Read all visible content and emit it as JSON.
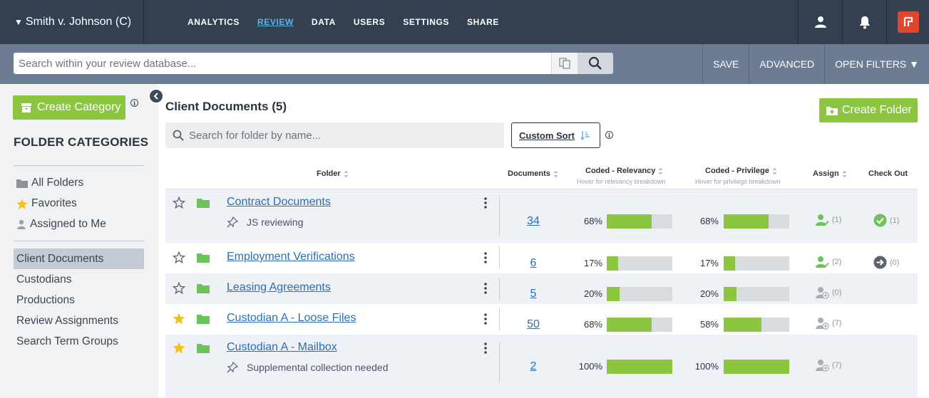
{
  "app": {
    "case_name": "Smith v. Johnson (C)",
    "nav": [
      {
        "label": "ANALYTICS",
        "active": false
      },
      {
        "label": "REVIEW",
        "active": true
      },
      {
        "label": "DATA",
        "active": false
      },
      {
        "label": "USERS",
        "active": false
      },
      {
        "label": "SETTINGS",
        "active": false
      },
      {
        "label": "SHARE",
        "active": false
      }
    ],
    "icons": [
      "user-icon",
      "bell-icon",
      "app-logo-icon"
    ],
    "colors": {
      "topbar": "#34404f",
      "searchbar": "#6c7c93",
      "accent_green": "#8cc53f",
      "link": "#2a6eb5",
      "active_nav": "#5db4e6",
      "logo": "#e0452e"
    }
  },
  "search": {
    "placeholder": "Search within your review database...",
    "actions": [
      "SAVE",
      "ADVANCED",
      "OPEN FILTERS ▼"
    ]
  },
  "sidebar": {
    "create_category": "Create Category",
    "title": "FOLDER CATEGORIES",
    "quick": [
      {
        "label": "All Folders",
        "icon": "folder-icon"
      },
      {
        "label": "Favorites",
        "icon": "star-icon"
      },
      {
        "label": "Assigned to Me",
        "icon": "user-icon"
      }
    ],
    "categories": [
      {
        "label": "Client Documents",
        "active": true
      },
      {
        "label": "Custodians",
        "active": false
      },
      {
        "label": "Productions",
        "active": false
      },
      {
        "label": "Review Assignments",
        "active": false
      },
      {
        "label": "Search Term Groups",
        "active": false
      }
    ]
  },
  "main": {
    "title": "Client Documents (5)",
    "create_folder": "Create Folder",
    "folder_search_placeholder": "Search for folder by name...",
    "custom_sort": "Custom Sort",
    "columns": {
      "folder": "Folder",
      "documents": "Documents",
      "relevancy": "Coded - Relevancy",
      "relevancy_sub": "Hover for relevancy breakdown",
      "privilege": "Coded - Privilege",
      "privilege_sub": "Hover for privilege breakdown",
      "assign": "Assign",
      "checkout": "Check Out"
    },
    "rows": [
      {
        "name": "Contract Documents",
        "note": "JS reviewing",
        "favorite": false,
        "documents": "34",
        "relevancy": 68,
        "relevancy_label": "68%",
        "privilege": 68,
        "privilege_label": "68%",
        "assign_count": "(1)",
        "assign_state": "assigned",
        "checkout_count": "(1)",
        "checkout_state": "checked"
      },
      {
        "name": "Employment Verifications",
        "note": "",
        "favorite": false,
        "documents": "6",
        "relevancy": 17,
        "relevancy_label": "17%",
        "privilege": 17,
        "privilege_label": "17%",
        "assign_count": "(2)",
        "assign_state": "assigned",
        "checkout_count": "(0)",
        "checkout_state": "arrow"
      },
      {
        "name": "Leasing Agreements",
        "note": "",
        "favorite": false,
        "documents": "5",
        "relevancy": 20,
        "relevancy_label": "20%",
        "privilege": 20,
        "privilege_label": "20%",
        "assign_count": "(0)",
        "assign_state": "add",
        "checkout_count": "",
        "checkout_state": "none"
      },
      {
        "name": "Custodian A - Loose Files",
        "note": "",
        "favorite": true,
        "documents": "50",
        "relevancy": 68,
        "relevancy_label": "68%",
        "privilege": 58,
        "privilege_label": "58%",
        "assign_count": "(7)",
        "assign_state": "add",
        "checkout_count": "",
        "checkout_state": "none"
      },
      {
        "name": "Custodian A - Mailbox",
        "note": "Supplemental collection needed",
        "favorite": true,
        "documents": "2",
        "relevancy": 100,
        "relevancy_label": "100%",
        "privilege": 100,
        "privilege_label": "100%",
        "assign_count": "(7)",
        "assign_state": "add",
        "checkout_count": "",
        "checkout_state": "none"
      }
    ]
  }
}
